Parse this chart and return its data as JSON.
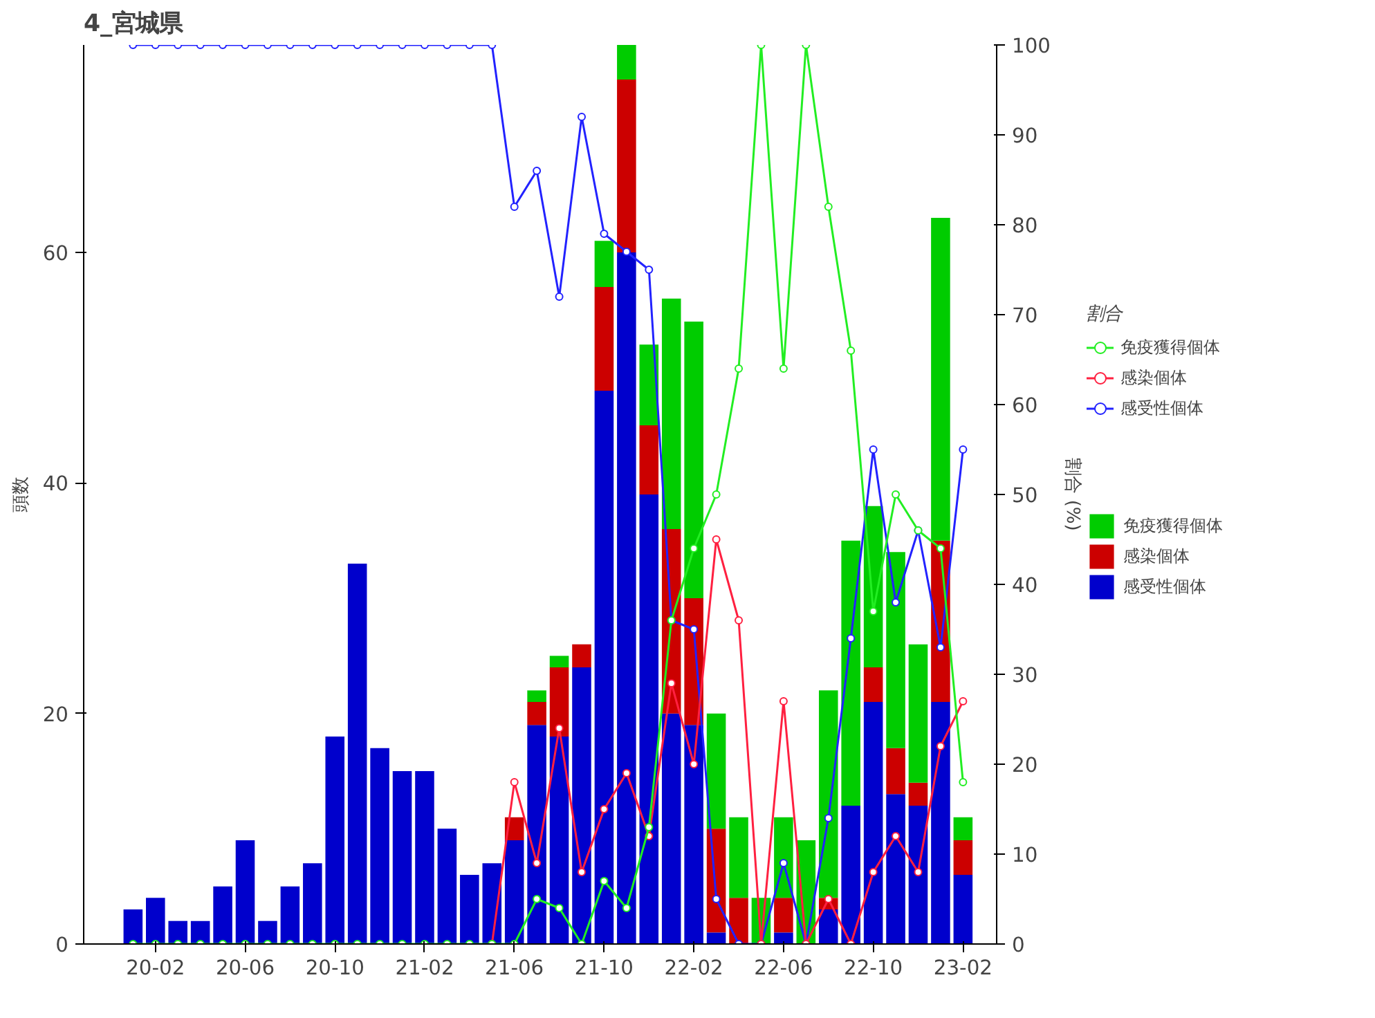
{
  "chart_data": {
    "type": "bar",
    "title": "4_宮城県",
    "ylabel": "頭数",
    "y2label": "割合 (%)",
    "legend_title": "割合",
    "categories": [
      null,
      "20-02",
      null,
      null,
      null,
      "20-06",
      null,
      null,
      null,
      "20-10",
      null,
      null,
      null,
      "21-02",
      null,
      null,
      null,
      "21-06",
      null,
      null,
      null,
      "21-10",
      null,
      null,
      null,
      "22-02",
      null,
      null,
      null,
      "22-06",
      null,
      null,
      null,
      "22-10",
      null,
      null,
      null,
      "23-02"
    ],
    "stacked": true,
    "ylim": [
      0,
      78
    ],
    "yticks": [
      0,
      20,
      40,
      60
    ],
    "y2lim": [
      0,
      100
    ],
    "y2ticks": [
      0,
      10,
      20,
      30,
      40,
      50,
      60,
      70,
      80,
      90,
      100
    ],
    "grid": false,
    "legend": "right",
    "series": [
      {
        "name": "感受性個体",
        "color": "#0000cc",
        "values": [
          3,
          4,
          2,
          2,
          5,
          9,
          2,
          5,
          7,
          18,
          33,
          17,
          15,
          15,
          10,
          6,
          7,
          9,
          19,
          18,
          24,
          48,
          60,
          39,
          20,
          19,
          1,
          0,
          0,
          1,
          0,
          3,
          12,
          21,
          13,
          12,
          21,
          6
        ]
      },
      {
        "name": "感染個体",
        "color": "#cc0000",
        "values": [
          0,
          0,
          0,
          0,
          0,
          0,
          0,
          0,
          0,
          0,
          0,
          0,
          0,
          0,
          0,
          0,
          0,
          2,
          2,
          6,
          2,
          9,
          15,
          6,
          16,
          11,
          9,
          4,
          0,
          3,
          0,
          1,
          0,
          3,
          4,
          2,
          14,
          3
        ]
      },
      {
        "name": "免疫獲得個体",
        "color": "#00cc00",
        "values": [
          0,
          0,
          0,
          0,
          0,
          0,
          0,
          0,
          0,
          0,
          0,
          0,
          0,
          0,
          0,
          0,
          0,
          0,
          1,
          1,
          0,
          4,
          3,
          7,
          20,
          24,
          10,
          7,
          4,
          7,
          9,
          18,
          23,
          14,
          17,
          12,
          28,
          2
        ]
      },
      {
        "name": "免疫獲得個体",
        "type": "line",
        "axis": "y2",
        "marker": "circle",
        "color": "#22ee22",
        "values": [
          0,
          0,
          0,
          0,
          0,
          0,
          0,
          0,
          0,
          0,
          0,
          0,
          0,
          0,
          0,
          0,
          0,
          0,
          5,
          4,
          0,
          7,
          4,
          13,
          36,
          44,
          50,
          64,
          100,
          64,
          100,
          82,
          66,
          37,
          50,
          46,
          44,
          18
        ]
      },
      {
        "name": "感染個体",
        "type": "line",
        "axis": "y2",
        "marker": "circle",
        "color": "#ff2040",
        "values": [
          null,
          null,
          null,
          null,
          null,
          null,
          null,
          null,
          null,
          null,
          null,
          null,
          null,
          null,
          null,
          null,
          0,
          18,
          9,
          24,
          8,
          15,
          19,
          12,
          29,
          20,
          45,
          36,
          0,
          27,
          0,
          5,
          0,
          8,
          12,
          8,
          22,
          27
        ]
      },
      {
        "name": "感受性個体",
        "type": "line",
        "axis": "y2",
        "marker": "circle",
        "color": "#2222ff",
        "values": [
          100,
          100,
          100,
          100,
          100,
          100,
          100,
          100,
          100,
          100,
          100,
          100,
          100,
          100,
          100,
          100,
          100,
          82,
          86,
          72,
          92,
          79,
          77,
          75,
          36,
          35,
          5,
          0,
          0,
          9,
          0,
          14,
          34,
          55,
          38,
          46,
          33,
          55
        ]
      }
    ]
  }
}
